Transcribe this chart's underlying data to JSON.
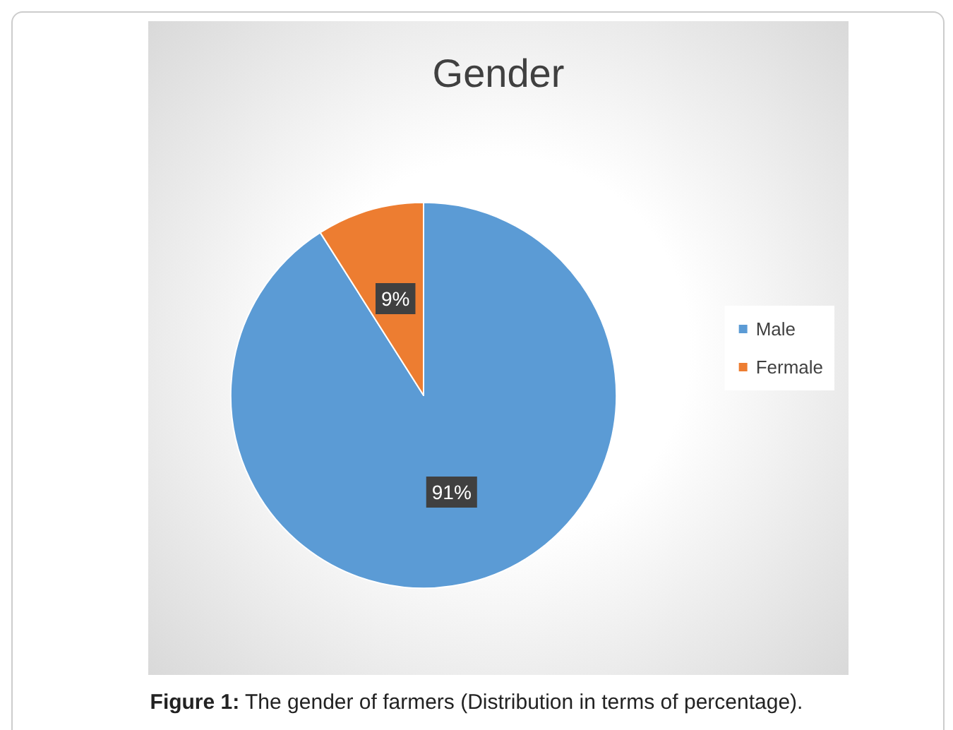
{
  "chart_data": {
    "type": "pie",
    "title": "Gender",
    "categories": [
      "Male",
      "Fermale"
    ],
    "values": [
      91,
      9
    ],
    "colors": [
      "#5b9bd5",
      "#ed7d31"
    ],
    "value_labels": [
      "91%",
      "9%"
    ],
    "legend": "right",
    "annotations": [
      "Figure 1: The gender of farmers (Distribution in terms of percentage)."
    ]
  }
}
